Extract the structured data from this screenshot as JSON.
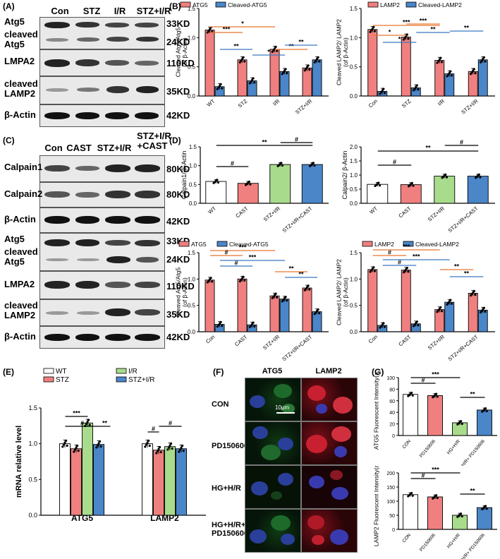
{
  "panel_labels": {
    "a": "(A)",
    "b": "(B)",
    "c": "(C)",
    "d": "(D)",
    "e": "(E)",
    "f": "(F)",
    "g": "(G)"
  },
  "blot_a": {
    "lanes": [
      "Con",
      "STZ",
      "I/R",
      "STZ+I/R"
    ],
    "rows": [
      {
        "name": "Atg5",
        "kd": "33KD"
      },
      {
        "name": "cleaved Atg5",
        "kd": "24KD"
      },
      {
        "name": "LMPA2",
        "kd": "110KD"
      },
      {
        "name": "cleaved LAMP2",
        "kd": "35KD"
      },
      {
        "name": "β-Actin",
        "kd": "42KD"
      }
    ]
  },
  "blot_c": {
    "lanes": [
      "Con",
      "CAST",
      "STZ+I/R",
      "STZ+I/R +CAST"
    ],
    "rows": [
      {
        "name": "Calpain1",
        "kd": "80KD"
      },
      {
        "name": "Calpain2",
        "kd": "80KD"
      },
      {
        "name": "β-Actin",
        "kd": "42KD"
      },
      {
        "name": "Atg5",
        "kd": "33KD"
      },
      {
        "name": "cleaved Atg5",
        "kd": "24KD"
      },
      {
        "name": "LMPA2",
        "kd": "110KD"
      },
      {
        "name": "cleaved LAMP2",
        "kd": "35KD"
      },
      {
        "name": "β-Actin",
        "kd": "42KD"
      }
    ]
  },
  "fluor": {
    "col_headers": [
      "ATG5",
      "LAMP2"
    ],
    "rows": [
      "CON",
      "PD150606",
      "HG+H/R",
      "HG+H/R+ PD150606"
    ],
    "scale_bar": "10μm"
  },
  "colors": {
    "red": "#f08080",
    "blue": "#4a86c8",
    "green": "#a8dc8c",
    "white": "#ffffff",
    "orange_line": "#e8762c",
    "blue_line": "#3a78c0"
  },
  "chart_data": [
    {
      "id": "B1",
      "type": "bar",
      "categories": [
        "WT",
        "STZ",
        "I/R",
        "STZ+I/R"
      ],
      "series": [
        {
          "name": "ATG5",
          "values": [
            1.13,
            0.62,
            0.8,
            0.48
          ]
        },
        {
          "name": "Cleaved-ATG5",
          "values": [
            0.16,
            0.26,
            0.42,
            0.62
          ]
        }
      ],
      "ylabel": "Cleaved Atg5/Atg5 (of β-Actin)",
      "ylim": [
        0,
        1.5
      ],
      "yticks": [
        "0.0",
        "0.5",
        "1.0",
        "1.5"
      ],
      "sig": [
        "*",
        "***",
        "*",
        "**",
        "**",
        "**"
      ]
    },
    {
      "id": "B2",
      "type": "bar",
      "categories": [
        "Con",
        "STZ",
        "I/R",
        "STZ+I/R"
      ],
      "series": [
        {
          "name": "LAMP2",
          "values": [
            1.14,
            1.01,
            0.61,
            0.42
          ]
        },
        {
          "name": "Cleaved-LAMP2",
          "values": [
            0.08,
            0.14,
            0.38,
            0.62
          ]
        }
      ],
      "ylabel": "Cleaved LAMP2/ LAMP2 (of β-Actin)",
      "ylim": [
        0,
        1.5
      ],
      "yticks": [
        "0.0",
        "0.5",
        "1.0",
        "1.5"
      ],
      "sig": [
        "*",
        "***",
        "**",
        "*",
        "***",
        "**"
      ]
    },
    {
      "id": "D1",
      "type": "bar",
      "categories": [
        "WT",
        "CAST",
        "STZ+I/R",
        "STZ+I/R+CAST"
      ],
      "series": [
        {
          "values": [
            0.58,
            0.53,
            1.03,
            1.03
          ]
        }
      ],
      "ylabel": "Calpain1/ β-Actin",
      "ylim": [
        0,
        1.5
      ],
      "yticks": [
        "0.0",
        "0.5",
        "1.0",
        "1.5"
      ],
      "sig": [
        "**",
        "#",
        "#"
      ]
    },
    {
      "id": "D2",
      "type": "bar",
      "categories": [
        "WT",
        "CAST",
        "STZ+I/R",
        "STZ+I/R+CAST"
      ],
      "series": [
        {
          "values": [
            0.67,
            0.66,
            0.96,
            0.96
          ]
        }
      ],
      "ylabel": "Calpain2/ β-Actin",
      "ylim": [
        0,
        2.0
      ],
      "yticks": [
        "0.0",
        "0.5",
        "1.0",
        "1.5",
        "2.0"
      ],
      "sig": [
        "**",
        "#",
        "#"
      ]
    },
    {
      "id": "D3",
      "type": "bar",
      "categories": [
        "Con",
        "CAST",
        "STZ+I/R",
        "STZ+I/R+CAST"
      ],
      "series": [
        {
          "name": "ATG5",
          "values": [
            0.98,
            1.0,
            0.68,
            0.83
          ]
        },
        {
          "name": "Cleaved-ATG5",
          "values": [
            0.14,
            0.13,
            0.62,
            0.38
          ]
        }
      ],
      "ylabel": "Cleaved Atg5/Atg5 (of β-Actin)",
      "ylim": [
        0,
        1.5
      ],
      "yticks": [
        "0.0",
        "0.5",
        "1.0",
        "1.5"
      ],
      "sig": [
        "***",
        "#",
        "***",
        "#",
        "**",
        "**"
      ]
    },
    {
      "id": "D4",
      "type": "bar",
      "categories": [
        "Con",
        "CAST",
        "STZ+I/R",
        "STZ+I/R+CAST"
      ],
      "series": [
        {
          "name": "LAMP2",
          "values": [
            1.18,
            1.17,
            0.42,
            0.73
          ]
        },
        {
          "name": "Cleaved-LAMP2",
          "values": [
            0.12,
            0.15,
            0.56,
            0.41
          ]
        }
      ],
      "ylabel": "Cleaved LAMP2/ LAMP2 (of β-Actin)",
      "ylim": [
        0,
        1.5
      ],
      "yticks": [
        "0.0",
        "0.5",
        "1.0",
        "1.5"
      ],
      "sig": [
        "***",
        "#",
        "***",
        "#",
        "**",
        "**"
      ]
    },
    {
      "id": "E",
      "type": "bar",
      "categories": [
        "ATG5",
        "LAMP2"
      ],
      "series": [
        {
          "name": "WT",
          "values": [
            1.0,
            1.0
          ]
        },
        {
          "name": "STZ",
          "values": [
            0.93,
            0.91
          ]
        },
        {
          "name": "I/R",
          "values": [
            1.29,
            0.96
          ]
        },
        {
          "name": "STZ+I/R",
          "values": [
            0.99,
            0.93
          ]
        }
      ],
      "ylabel": "mRNA relative level",
      "ylim": [
        0,
        1.5
      ],
      "yticks": [
        "0.0",
        "0.5",
        "1.0",
        "1.5"
      ],
      "sig": [
        "***",
        "#",
        "**",
        "#",
        "#"
      ]
    },
    {
      "id": "G1",
      "type": "bar",
      "categories": [
        "CON",
        "PD150606",
        "HG+H/R",
        "HG+H/R+ PD150606"
      ],
      "series": [
        {
          "values": [
            71,
            69,
            22,
            44
          ]
        }
      ],
      "ylabel": "ATG5 Fluorescent Intensity(a.u.)",
      "ylim": [
        0,
        100
      ],
      "yticks": [
        "0",
        "20",
        "40",
        "60",
        "80",
        "100"
      ],
      "sig": [
        "***",
        "#",
        "**"
      ]
    },
    {
      "id": "G2",
      "type": "bar",
      "categories": [
        "CON",
        "PD150606",
        "HG+H/R",
        "HG+H/R+ PD150606"
      ],
      "series": [
        {
          "values": [
            123,
            115,
            50,
            77
          ]
        }
      ],
      "ylabel": "LAMP2 Fluorescent Intensity(a.u.)",
      "ylim": [
        0,
        200
      ],
      "yticks": [
        "0",
        "50",
        "100",
        "150",
        "200"
      ],
      "sig": [
        "***",
        "#",
        "**"
      ]
    }
  ]
}
